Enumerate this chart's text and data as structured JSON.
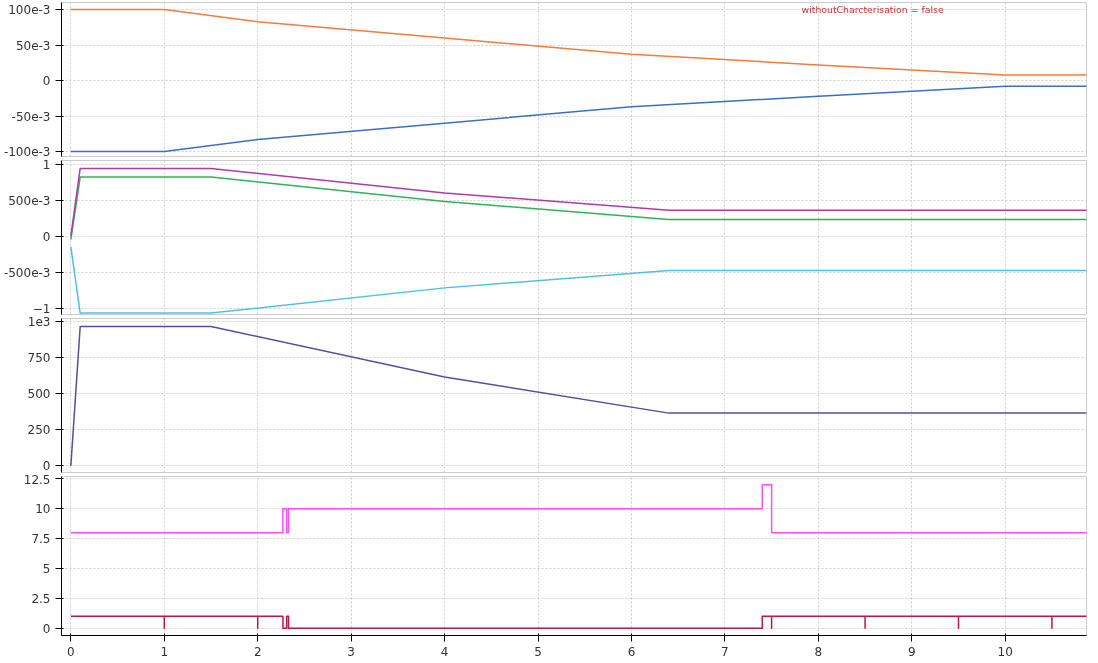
{
  "chart_data": [
    {
      "type": "line",
      "xlim": [
        -0.1,
        10.87
      ],
      "ylim": [
        -0.107,
        0.11
      ],
      "xticks": [
        0,
        1,
        2,
        3,
        4,
        5,
        6,
        7,
        8,
        9,
        10
      ],
      "yticks": [
        {
          "value": -0.1,
          "label": "-100e-3"
        },
        {
          "value": -0.05,
          "label": "-50e-3"
        },
        0,
        {
          "value": 0.05,
          "label": "50e-3"
        },
        {
          "value": 0.1,
          "label": "100e-3"
        }
      ],
      "tick_labels": "y",
      "grid": true,
      "annotations": [
        "withoutCharcterisation = false"
      ],
      "series": [
        {
          "color": "#f47b3b",
          "x": [
            0,
            1,
            2,
            4,
            6,
            8,
            10,
            10.87
          ],
          "values": [
            0.1,
            0.1,
            0.083,
            0.06,
            0.037,
            0.022,
            0.008,
            0.008
          ]
        },
        {
          "color": "#3a6fc4",
          "x": [
            0,
            1,
            2,
            4,
            6,
            8,
            10,
            10.87
          ],
          "values": [
            -0.1,
            -0.1,
            -0.083,
            -0.06,
            -0.037,
            -0.022,
            -0.008,
            -0.008
          ]
        }
      ]
    },
    {
      "type": "line",
      "xlim": [
        -0.1,
        10.87
      ],
      "ylim": [
        -1.09,
        1.05
      ],
      "xticks": [
        0,
        1,
        2,
        3,
        4,
        5,
        6,
        7,
        8,
        9,
        10
      ],
      "yticks": [
        -1,
        {
          "value": -0.5,
          "label": "-500e-3"
        },
        0,
        {
          "value": 0.5,
          "label": "500e-3"
        },
        1
      ],
      "tick_labels": "y",
      "grid": true,
      "series": [
        {
          "color": "#2eb35a",
          "x": [
            0,
            0.1,
            1.5,
            4,
            6.4,
            10.87
          ],
          "values": [
            -0.05,
            0.82,
            0.82,
            0.48,
            0.23,
            0.23
          ]
        },
        {
          "color": "#4cc3dc",
          "x": [
            0,
            0.1,
            1.5,
            4,
            6.4,
            10.87
          ],
          "values": [
            -0.15,
            -1.07,
            -1.07,
            -0.72,
            -0.48,
            -0.48
          ]
        },
        {
          "color": "#b03aa8",
          "x": [
            0,
            0.1,
            1.5,
            4,
            6.4,
            10.87
          ],
          "values": [
            0,
            0.94,
            0.94,
            0.6,
            0.36,
            0.36
          ]
        }
      ]
    },
    {
      "type": "line",
      "xlim": [
        -0.1,
        10.87
      ],
      "ylim": [
        -46,
        1020
      ],
      "xticks": [
        0,
        1,
        2,
        3,
        4,
        5,
        6,
        7,
        8,
        9,
        10
      ],
      "yticks": [
        0,
        250,
        500,
        750,
        {
          "value": 1000,
          "label": "1e3"
        }
      ],
      "tick_labels": "y",
      "grid": true,
      "series": [
        {
          "color": "#5a4ca0",
          "x": [
            0,
            0.1,
            1.5,
            4,
            6.4,
            10.87
          ],
          "values": [
            0,
            965,
            965,
            615,
            365,
            365
          ]
        }
      ]
    },
    {
      "type": "line",
      "xlim": [
        -0.1,
        10.87
      ],
      "ylim": [
        -0.6,
        12.7
      ],
      "xticks": [
        0,
        1,
        2,
        3,
        4,
        5,
        6,
        7,
        8,
        9,
        10
      ],
      "yticks": [
        0,
        2.5,
        5,
        7.5,
        10,
        12.5
      ],
      "grid": true,
      "series": [
        {
          "color": "#ff4dff",
          "x": [
            0,
            2.27,
            2.27,
            2.31,
            2.31,
            2.33,
            2.33,
            7.4,
            7.4,
            7.5,
            7.5,
            10.87
          ],
          "values": [
            8,
            8,
            10,
            10,
            8,
            8,
            10,
            10,
            12,
            12,
            8,
            8
          ]
        },
        {
          "color": "#c0134a",
          "x": [
            0,
            1,
            1,
            1,
            2,
            2,
            2,
            2.27,
            2.27,
            2.31,
            2.31,
            2.33,
            2.33,
            7.4,
            7.4,
            7.5,
            7.5,
            7.5,
            8.5,
            8.5,
            8.5,
            9.5,
            9.5,
            9.5,
            10.5,
            10.5,
            10.5,
            10.87
          ],
          "values": [
            1,
            1,
            0,
            1,
            1,
            0,
            1,
            1,
            0,
            0,
            1,
            1,
            0,
            0,
            1,
            1,
            0,
            1,
            1,
            0,
            1,
            1,
            0,
            1,
            1,
            0,
            1,
            1
          ]
        }
      ]
    }
  ]
}
